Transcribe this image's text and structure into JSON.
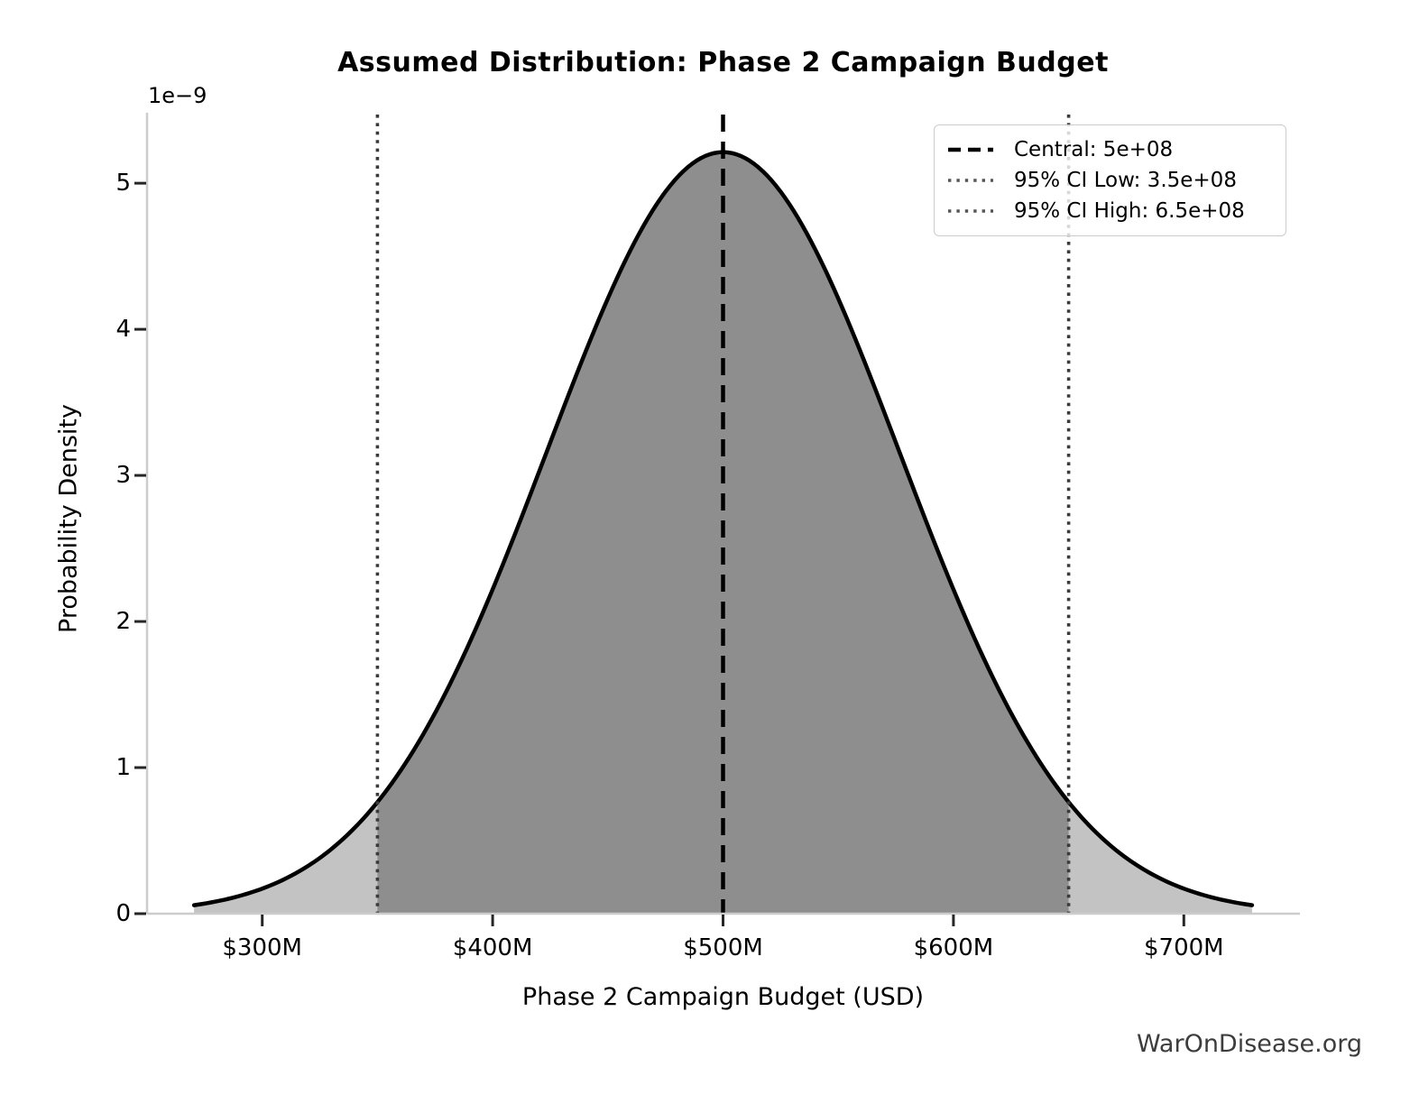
{
  "watermark": "WarOnDisease.org",
  "chart_data": {
    "type": "area",
    "title": "Assumed Distribution: Phase 2 Campaign Budget",
    "xlabel": "Phase 2 Campaign Budget (USD)",
    "ylabel": "Probability Density",
    "y_offset_label": "1e−9",
    "distribution": "normal",
    "mean": 500000000,
    "sigma": 76530612,
    "ci_low": 350000000,
    "ci_high": 650000000,
    "peak_density": 5.2127e-09,
    "curve_x_range": [
      270408163,
      729591837
    ],
    "xlim": [
      250000000,
      750000000
    ],
    "ylim": [
      0,
      5.47e-09
    ],
    "grid": false,
    "xticks": [
      300000000,
      400000000,
      500000000,
      600000000,
      700000000
    ],
    "xticklabels": [
      "$300M",
      "$400M",
      "$500M",
      "$600M",
      "$700M"
    ],
    "yticks_1e9": [
      0,
      1,
      2,
      3,
      4,
      5
    ],
    "yticklabels": [
      "0",
      "1",
      "2",
      "3",
      "4",
      "5"
    ],
    "legend_position": "upper right",
    "legend": [
      {
        "label": "Central: 5e+08",
        "linestyle": "dashed",
        "color": "#000000"
      },
      {
        "label": "95% CI Low: 3.5e+08",
        "linestyle": "dotted",
        "color": "#555555"
      },
      {
        "label": "95% CI High: 6.5e+08",
        "linestyle": "dotted",
        "color": "#555555"
      }
    ],
    "colors": {
      "curve": "#000000",
      "area_fill": "#c3c3c3",
      "ci_fill": "#8e8e8e",
      "central_line": "#000000",
      "ci_line": "#3a3a3a",
      "spine": "#cccccc",
      "tick": "#262626",
      "watermark": "#3d3d3d"
    }
  }
}
